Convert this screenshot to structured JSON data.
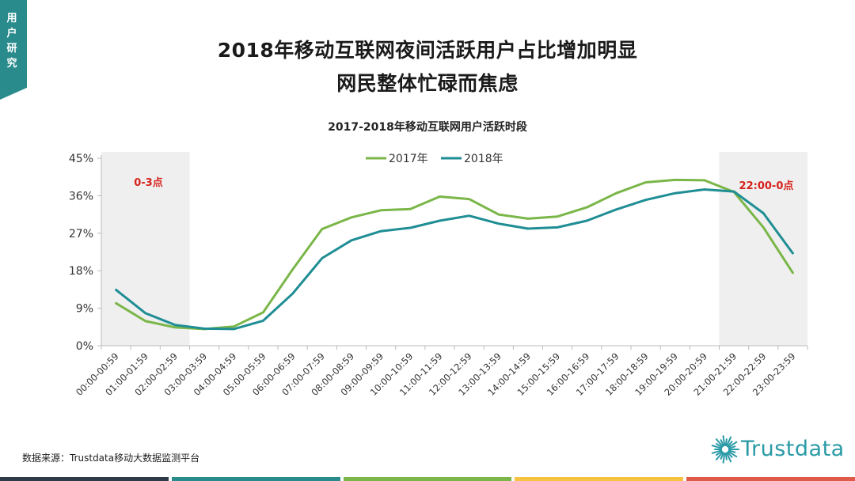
{
  "side_tab": {
    "label": "用户研究",
    "color": "#2a8b8c"
  },
  "title_line1": "2018年移动互联网夜间活跃用户占比增加明显",
  "title_line2": "网民整体忙碌而焦虑",
  "source": "数据来源：Trustdata移动大数据监测平台",
  "logo_text": "Trustdata",
  "bottom_bar_colors": [
    "#2e3a48",
    "#2a8b8c",
    "#7ab648",
    "#f5c242",
    "#e05a4a"
  ],
  "chart_data": {
    "type": "line",
    "title": "2017-2018年移动互联网用户活跃时段",
    "categories": [
      "00:00-00:59",
      "01:00-01:59",
      "02:00-02:59",
      "03:00-03:59",
      "04:00-04:59",
      "05:00-05:59",
      "06:00-06:59",
      "07:00-07:59",
      "08:00-08:59",
      "09:00-09:59",
      "10:00-10:59",
      "11:00-11:59",
      "12:00-12:59",
      "13:00-13:59",
      "14:00-14:59",
      "15:00-15:59",
      "16:00-16:59",
      "17:00-17:59",
      "18:00-18:59",
      "19:00-19:59",
      "20:00-20:59",
      "21:00-21:59",
      "22:00-22:59",
      "23:00-23:59"
    ],
    "series": [
      {
        "name": "2017年",
        "color": "#7ab648",
        "values": [
          10.2,
          5.9,
          4.4,
          4.0,
          4.6,
          8.0,
          18.3,
          28.0,
          30.8,
          32.5,
          32.8,
          35.8,
          35.2,
          31.5,
          30.5,
          31.0,
          33.2,
          36.6,
          39.2,
          39.8,
          39.7,
          36.9,
          28.4,
          17.5
        ]
      },
      {
        "name": "2018年",
        "color": "#1f8e94",
        "values": [
          13.4,
          7.8,
          5.0,
          4.1,
          4.0,
          6.0,
          12.5,
          21.0,
          25.3,
          27.5,
          28.3,
          30.0,
          31.2,
          29.3,
          28.1,
          28.4,
          30.0,
          32.7,
          35.0,
          36.6,
          37.5,
          37.0,
          31.8,
          22.2
        ]
      }
    ],
    "yticks": [
      "0%",
      "9%",
      "18%",
      "27%",
      "36%",
      "45%"
    ],
    "ylim": [
      0,
      45
    ],
    "y_unit": "%",
    "legend_position": "top",
    "shaded_regions": [
      {
        "from": 0,
        "to": 3,
        "label": "0-3点"
      },
      {
        "from": 21,
        "to": 24,
        "label": "22:00-0点"
      }
    ],
    "annotation_color": "#d6211b",
    "shade_color": "#efefef",
    "grid": false
  }
}
